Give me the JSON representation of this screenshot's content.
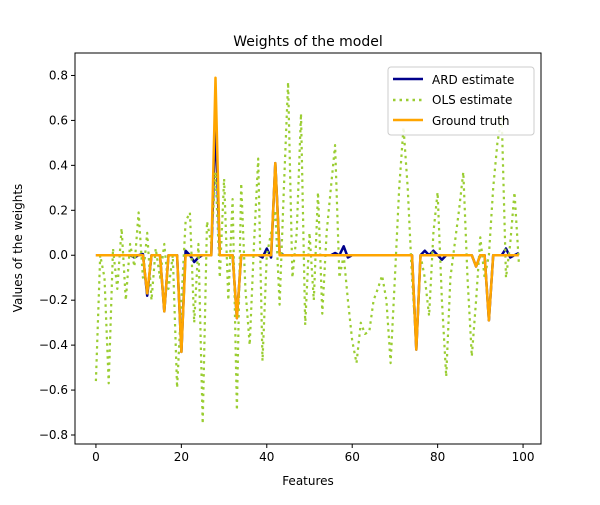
{
  "chart_data": {
    "type": "line",
    "title": "Weights of the model",
    "xlabel": "Features",
    "ylabel": "Values of the weights",
    "xlim": [
      -4.9,
      104.2
    ],
    "ylim": [
      -0.84,
      0.9
    ],
    "xticks": [
      0,
      20,
      40,
      60,
      80,
      100
    ],
    "yticks": [
      -0.8,
      -0.6,
      -0.4,
      -0.2,
      0.0,
      0.2,
      0.4,
      0.6,
      0.8
    ],
    "xtick_labels": [
      "0",
      "20",
      "40",
      "60",
      "80",
      "100"
    ],
    "ytick_labels": [
      "−0.8",
      "−0.6",
      "−0.4",
      "−0.2",
      "0.0",
      "0.2",
      "0.4",
      "0.6",
      "0.8"
    ],
    "grid": false,
    "legend_position": "top-right",
    "series": [
      {
        "name": "ARD estimate",
        "color": "#00008b",
        "style": "solid",
        "values": [
          0,
          0,
          0,
          0,
          0,
          0,
          0,
          0,
          0,
          -0.01,
          0,
          0.005,
          -0.18,
          0,
          0,
          0,
          -0.25,
          0,
          0,
          0,
          -0.43,
          0.02,
          0,
          -0.03,
          -0.01,
          0,
          0,
          0,
          0.6,
          0,
          0,
          0,
          0,
          -0.28,
          0,
          0,
          0,
          0,
          0,
          -0.01,
          0.03,
          -0.01,
          0.41,
          0.01,
          0,
          0,
          0,
          0,
          0,
          0,
          0,
          0,
          0,
          0,
          0,
          0,
          0.01,
          0,
          0.04,
          -0.01,
          0,
          0,
          0,
          0,
          0,
          0,
          0,
          0,
          0,
          0,
          0,
          0,
          0,
          0,
          0,
          -0.42,
          0,
          0.02,
          0,
          0.02,
          0,
          -0.02,
          0,
          0,
          0,
          0,
          0,
          0,
          0,
          -0.05,
          0,
          0,
          -0.29,
          0,
          0,
          0,
          0.03,
          -0.01,
          0,
          0.01
        ]
      },
      {
        "name": "OLS estimate",
        "color": "#9acd32",
        "style": "dotted",
        "values": [
          -0.56,
          0.0,
          -0.1,
          -0.57,
          0.03,
          -0.15,
          0.12,
          -0.2,
          0.05,
          -0.05,
          0.19,
          -0.1,
          0.1,
          -0.2,
          0.03,
          -0.1,
          0.05,
          -0.15,
          0.0,
          -0.59,
          -0.2,
          0.15,
          0.19,
          -0.3,
          0.05,
          -0.75,
          0.15,
          0.05,
          0.37,
          -0.1,
          0.34,
          -0.2,
          0.25,
          -0.69,
          0.32,
          -0.15,
          -0.4,
          0.05,
          0.43,
          -0.47,
          0.0,
          0.1,
          0.2,
          -0.22,
          0.3,
          0.77,
          -0.1,
          0.1,
          0.63,
          -0.31,
          0.1,
          -0.2,
          0.28,
          -0.26,
          0.1,
          0.3,
          0.49,
          -0.1,
          0.0,
          -0.2,
          -0.38,
          -0.48,
          -0.3,
          -0.35,
          -0.34,
          -0.2,
          -0.15,
          -0.09,
          -0.2,
          -0.48,
          -0.1,
          0.3,
          0.57,
          0.3,
          -0.1,
          -0.4,
          0.0,
          -0.1,
          -0.27,
          0.1,
          0.28,
          -0.2,
          -0.54,
          -0.1,
          0.05,
          0.2,
          0.37,
          -0.1,
          -0.45,
          -0.2,
          0.08,
          -0.1,
          0.0,
          0.3,
          0.5,
          0.62,
          -0.1,
          0.05,
          0.28,
          -0.03
        ]
      },
      {
        "name": "Ground truth",
        "color": "#ffa500",
        "style": "solid",
        "values": [
          0,
          0,
          0,
          0,
          0,
          0,
          0,
          0,
          0,
          0,
          0,
          0,
          -0.17,
          0,
          0,
          0,
          -0.25,
          0,
          0,
          0,
          -0.43,
          0,
          0,
          0,
          0,
          0,
          0,
          0,
          0.79,
          0,
          0,
          0,
          0,
          -0.28,
          0,
          0,
          0,
          0,
          0,
          0,
          0,
          0,
          0.41,
          0,
          0,
          0,
          0,
          0,
          0,
          0,
          0,
          0,
          0,
          0,
          0,
          0,
          0,
          0,
          0,
          0,
          0,
          0,
          0,
          0,
          0,
          0,
          0,
          0,
          0,
          0,
          0,
          0,
          0,
          0,
          0,
          -0.42,
          0,
          0,
          0,
          0,
          0,
          0,
          0,
          0,
          0,
          0,
          0,
          0,
          0,
          -0.05,
          0,
          0,
          -0.29,
          0,
          0,
          0,
          0,
          0,
          0,
          0
        ]
      }
    ]
  }
}
